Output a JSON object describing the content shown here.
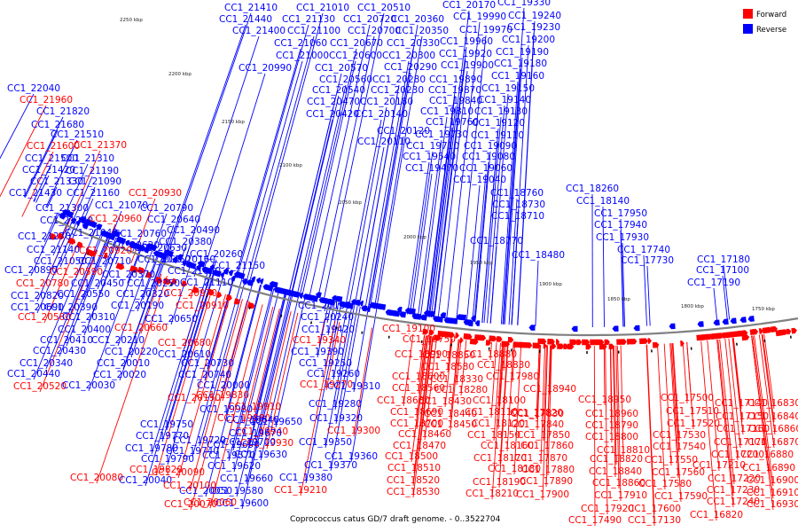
{
  "caption": "Coprococcus catus GD/7 draft genome. - 0..3522704",
  "legend": [
    {
      "label": "Forward",
      "color": "#ff0000"
    },
    {
      "label": "Reverse",
      "color": "#0000ff"
    }
  ],
  "colors": {
    "forward": "#ff0000",
    "reverse": "#0000ff",
    "backbone": "#808080"
  },
  "ticks": [
    "2250 kbp",
    "2200 kbp",
    "2150 kbp",
    "2100 kbp",
    "2050 kbp",
    "2000 kbp",
    "1950 kbp",
    "1900 kbp",
    "1850 kbp",
    "1800 kbp",
    "1750 kbp"
  ],
  "genes": [
    {
      "id": "CC1_21410",
      "strand": "r"
    },
    {
      "id": "CC1_21010",
      "strand": "r"
    },
    {
      "id": "CC1_20510",
      "strand": "r"
    },
    {
      "id": "CC1_20170",
      "strand": "r"
    },
    {
      "id": "CC1_19330",
      "strand": "r"
    },
    {
      "id": "CC1_21440",
      "strand": "r"
    },
    {
      "id": "CC1_21130",
      "strand": "r"
    },
    {
      "id": "CC1_20720",
      "strand": "r"
    },
    {
      "id": "CC1_20360",
      "strand": "r"
    },
    {
      "id": "CC1_19990",
      "strand": "r"
    },
    {
      "id": "CC1_19240",
      "strand": "r"
    },
    {
      "id": "CC1_21400",
      "strand": "r"
    },
    {
      "id": "CC1_21100",
      "strand": "r"
    },
    {
      "id": "CC1_20700",
      "strand": "r"
    },
    {
      "id": "CC1_20350",
      "strand": "r"
    },
    {
      "id": "CC1_19970",
      "strand": "r"
    },
    {
      "id": "CC1_19230",
      "strand": "r"
    },
    {
      "id": "CC1_21060",
      "strand": "r"
    },
    {
      "id": "CC1_20670",
      "strand": "r"
    },
    {
      "id": "CC1_20330",
      "strand": "r"
    },
    {
      "id": "CC1_19960",
      "strand": "r"
    },
    {
      "id": "CC1_19200",
      "strand": "r"
    },
    {
      "id": "CC1_21000",
      "strand": "r"
    },
    {
      "id": "CC1_20600",
      "strand": "r"
    },
    {
      "id": "CC1_20300",
      "strand": "r"
    },
    {
      "id": "CC1_19920",
      "strand": "r"
    },
    {
      "id": "CC1_19190",
      "strand": "r"
    },
    {
      "id": "CC1_20990",
      "strand": "r"
    },
    {
      "id": "CC1_20570",
      "strand": "r"
    },
    {
      "id": "CC1_20290",
      "strand": "r"
    },
    {
      "id": "CC1_19900",
      "strand": "r"
    },
    {
      "id": "CC1_19180",
      "strand": "r"
    },
    {
      "id": "CC1_20560",
      "strand": "r"
    },
    {
      "id": "CC1_20280",
      "strand": "r"
    },
    {
      "id": "CC1_19890",
      "strand": "r"
    },
    {
      "id": "CC1_19160",
      "strand": "r"
    },
    {
      "id": "CC1_20540",
      "strand": "r"
    },
    {
      "id": "CC1_20230",
      "strand": "r"
    },
    {
      "id": "CC1_19870",
      "strand": "r"
    },
    {
      "id": "CC1_19150",
      "strand": "r"
    },
    {
      "id": "CC1_20470",
      "strand": "r"
    },
    {
      "id": "CC1_20180",
      "strand": "r"
    },
    {
      "id": "CC1_19840",
      "strand": "r"
    },
    {
      "id": "CC1_19140",
      "strand": "r"
    },
    {
      "id": "CC1_20420",
      "strand": "r"
    },
    {
      "id": "CC1_20140",
      "strand": "r"
    },
    {
      "id": "CC1_19810",
      "strand": "r"
    },
    {
      "id": "CC1_19130",
      "strand": "r"
    },
    {
      "id": "CC1_19760",
      "strand": "r"
    },
    {
      "id": "CC1_19120",
      "strand": "r"
    },
    {
      "id": "CC1_20120",
      "strand": "r"
    },
    {
      "id": "CC1_19730",
      "strand": "r"
    },
    {
      "id": "CC1_19110",
      "strand": "r"
    },
    {
      "id": "CC1_20110",
      "strand": "r"
    },
    {
      "id": "CC1_19710",
      "strand": "r"
    },
    {
      "id": "CC1_19090",
      "strand": "r"
    },
    {
      "id": "CC1_19540",
      "strand": "r"
    },
    {
      "id": "CC1_19080",
      "strand": "r"
    },
    {
      "id": "CC1_19470",
      "strand": "r"
    },
    {
      "id": "CC1_19060",
      "strand": "r"
    },
    {
      "id": "CC1_19040",
      "strand": "r"
    },
    {
      "id": "CC1_18760",
      "strand": "r"
    },
    {
      "id": "CC1_18730",
      "strand": "r"
    },
    {
      "id": "CC1_18710",
      "strand": "r"
    },
    {
      "id": "CC1_18260",
      "strand": "r"
    },
    {
      "id": "CC1_18140",
      "strand": "r"
    },
    {
      "id": "CC1_17950",
      "strand": "r"
    },
    {
      "id": "CC1_17940",
      "strand": "r"
    },
    {
      "id": "CC1_17930",
      "strand": "r"
    },
    {
      "id": "CC1_17740",
      "strand": "r"
    },
    {
      "id": "CC1_17730",
      "strand": "r"
    },
    {
      "id": "CC1_18770",
      "strand": "r"
    },
    {
      "id": "CC1_18480",
      "strand": "r"
    },
    {
      "id": "CC1_17180",
      "strand": "r"
    },
    {
      "id": "CC1_17100",
      "strand": "r"
    },
    {
      "id": "CC1_17190",
      "strand": "r"
    },
    {
      "id": "CC1_22040",
      "strand": "r"
    },
    {
      "id": "CC1_21960",
      "strand": "f"
    },
    {
      "id": "CC1_21820",
      "strand": "r"
    },
    {
      "id": "CC1_21680",
      "strand": "r"
    },
    {
      "id": "CC1_21510",
      "strand": "r"
    },
    {
      "id": "CC1_21600",
      "strand": "f"
    },
    {
      "id": "CC1_21370",
      "strand": "f"
    },
    {
      "id": "CC1_21500",
      "strand": "r"
    },
    {
      "id": "CC1_21310",
      "strand": "r"
    },
    {
      "id": "CC1_21420",
      "strand": "r"
    },
    {
      "id": "CC1_21190",
      "strand": "r"
    },
    {
      "id": "CC1_21330",
      "strand": "r"
    },
    {
      "id": "CC1_21090",
      "strand": "r"
    },
    {
      "id": "CC1_21430",
      "strand": "r"
    },
    {
      "id": "CC1_21160",
      "strand": "r"
    },
    {
      "id": "CC1_20930",
      "strand": "f"
    },
    {
      "id": "CC1_21300",
      "strand": "r"
    },
    {
      "id": "CC1_21070",
      "strand": "r"
    },
    {
      "id": "CC1_20790",
      "strand": "r"
    },
    {
      "id": "CC1_21230",
      "strand": "r"
    },
    {
      "id": "CC1_20960",
      "strand": "f"
    },
    {
      "id": "CC1_20640",
      "strand": "r"
    },
    {
      "id": "CC1_21040",
      "strand": "r"
    },
    {
      "id": "CC1_20760",
      "strand": "r"
    },
    {
      "id": "CC1_20490",
      "strand": "r"
    },
    {
      "id": "CC1_21270",
      "strand": "r"
    },
    {
      "id": "CC1_20620",
      "strand": "r"
    },
    {
      "id": "CC1_20380",
      "strand": "r"
    },
    {
      "id": "CC1_21140",
      "strand": "r"
    },
    {
      "id": "CC1_20920",
      "strand": "f"
    },
    {
      "id": "CC1_20630",
      "strand": "r"
    },
    {
      "id": "CC1_20260",
      "strand": "r"
    },
    {
      "id": "CC1_21050",
      "strand": "r"
    },
    {
      "id": "CC1_20710",
      "strand": "r"
    },
    {
      "id": "CC1_20460",
      "strand": "r"
    },
    {
      "id": "CC1_20160",
      "strand": "r"
    },
    {
      "id": "CC1_21150",
      "strand": "r"
    },
    {
      "id": "CC1_20890",
      "strand": "r"
    },
    {
      "id": "CC1_20590",
      "strand": "f"
    },
    {
      "id": "CC1_20370",
      "strand": "r"
    },
    {
      "id": "CC1_21080",
      "strand": "r"
    },
    {
      "id": "CC1_20780",
      "strand": "f"
    },
    {
      "id": "CC1_20450",
      "strand": "r"
    },
    {
      "id": "CC1_20250",
      "strand": "r"
    },
    {
      "id": "CC1_21110",
      "strand": "r"
    },
    {
      "id": "CC1_20820",
      "strand": "r"
    },
    {
      "id": "CC1_20550",
      "strand": "r"
    },
    {
      "id": "CC1_20320",
      "strand": "r"
    },
    {
      "id": "CC1_20970",
      "strand": "f"
    },
    {
      "id": "CC1_20690",
      "strand": "r"
    },
    {
      "id": "CC1_20390",
      "strand": "r"
    },
    {
      "id": "CC1_20190",
      "strand": "r"
    },
    {
      "id": "CC1_20910",
      "strand": "f"
    },
    {
      "id": "CC1_20580",
      "strand": "f"
    },
    {
      "id": "CC1_20310",
      "strand": "r"
    },
    {
      "id": "CC1_20650",
      "strand": "r"
    },
    {
      "id": "CC1_20400",
      "strand": "r"
    },
    {
      "id": "CC1_20660",
      "strand": "f"
    },
    {
      "id": "CC1_20410",
      "strand": "r"
    },
    {
      "id": "CC1_20210",
      "strand": "r"
    },
    {
      "id": "CC1_20680",
      "strand": "f"
    },
    {
      "id": "CC1_20430",
      "strand": "r"
    },
    {
      "id": "CC1_20220",
      "strand": "r"
    },
    {
      "id": "CC1_20610",
      "strand": "r"
    },
    {
      "id": "CC1_20340",
      "strand": "r"
    },
    {
      "id": "CC1_20010",
      "strand": "r"
    },
    {
      "id": "CC1_20730",
      "strand": "r"
    },
    {
      "id": "CC1_20440",
      "strand": "r"
    },
    {
      "id": "CC1_20020",
      "strand": "r"
    },
    {
      "id": "CC1_20740",
      "strand": "r"
    },
    {
      "id": "CC1_20520",
      "strand": "f"
    },
    {
      "id": "CC1_20030",
      "strand": "r"
    },
    {
      "id": "CC1_20000",
      "strand": "r"
    },
    {
      "id": "CC1_20150",
      "strand": "f"
    },
    {
      "id": "CC1_19980",
      "strand": "r"
    },
    {
      "id": "CC1_19830",
      "strand": "f"
    },
    {
      "id": "CC1_19910",
      "strand": "f"
    },
    {
      "id": "CC1_19880",
      "strand": "f"
    },
    {
      "id": "CC1_19940",
      "strand": "f"
    },
    {
      "id": "CC1_19930",
      "strand": "f"
    },
    {
      "id": "CC1_19630",
      "strand": "r"
    },
    {
      "id": "CC1_19690",
      "strand": "r"
    },
    {
      "id": "CC1_19570",
      "strand": "r"
    },
    {
      "id": "CC1_19620",
      "strand": "r"
    },
    {
      "id": "CC1_19660",
      "strand": "r"
    },
    {
      "id": "CC1_19580",
      "strand": "r"
    },
    {
      "id": "CC1_19600",
      "strand": "r"
    },
    {
      "id": "CC1_19640",
      "strand": "r"
    },
    {
      "id": "CC1_19650",
      "strand": "r"
    },
    {
      "id": "CC1_19670",
      "strand": "r"
    },
    {
      "id": "CC1_19700",
      "strand": "r"
    },
    {
      "id": "CC1_19720",
      "strand": "r"
    },
    {
      "id": "CC1_19740",
      "strand": "r"
    },
    {
      "id": "CC1_19750",
      "strand": "r"
    },
    {
      "id": "CC1_19770",
      "strand": "r"
    },
    {
      "id": "CC1_19780",
      "strand": "r"
    },
    {
      "id": "CC1_19790",
      "strand": "r"
    },
    {
      "id": "CC1_19820",
      "strand": "f"
    },
    {
      "id": "CC1_20040",
      "strand": "r"
    },
    {
      "id": "CC1_20050",
      "strand": "r"
    },
    {
      "id": "CC1_20060",
      "strand": "f"
    },
    {
      "id": "CC1_20070",
      "strand": "f"
    },
    {
      "id": "CC1_20080",
      "strand": "f"
    },
    {
      "id": "CC1_20090",
      "strand": "f"
    },
    {
      "id": "CC1_20100",
      "strand": "f"
    },
    {
      "id": "CC1_20130",
      "strand": "r"
    },
    {
      "id": "CC1_20240",
      "strand": "r"
    },
    {
      "id": "CC1_19420",
      "strand": "r"
    },
    {
      "id": "CC1_19340",
      "strand": "f"
    },
    {
      "id": "CC1_19390",
      "strand": "r"
    },
    {
      "id": "CC1_19250",
      "strand": "r"
    },
    {
      "id": "CC1_19260",
      "strand": "r"
    },
    {
      "id": "CC1_19270",
      "strand": "f"
    },
    {
      "id": "CC1_19310",
      "strand": "r"
    },
    {
      "id": "CC1_19320",
      "strand": "r"
    },
    {
      "id": "CC1_19280",
      "strand": "r"
    },
    {
      "id": "CC1_19300",
      "strand": "f"
    },
    {
      "id": "CC1_19350",
      "strand": "r"
    },
    {
      "id": "CC1_19360",
      "strand": "r"
    },
    {
      "id": "CC1_19370",
      "strand": "r"
    },
    {
      "id": "CC1_19380",
      "strand": "r"
    },
    {
      "id": "CC1_19210",
      "strand": "f"
    },
    {
      "id": "CC1_19100",
      "strand": "f"
    },
    {
      "id": "CC1_18990",
      "strand": "f"
    },
    {
      "id": "CC1_18750",
      "strand": "f"
    },
    {
      "id": "CC1_18850",
      "strand": "f"
    },
    {
      "id": "CC1_18580",
      "strand": "f"
    },
    {
      "id": "CC1_18880",
      "strand": "f"
    },
    {
      "id": "CC1_18600",
      "strand": "f"
    },
    {
      "id": "CC1_18330",
      "strand": "f"
    },
    {
      "id": "CC1_18830",
      "strand": "f"
    },
    {
      "id": "CC1_18560",
      "strand": "f"
    },
    {
      "id": "CC1_18280",
      "strand": "f"
    },
    {
      "id": "CC1_17980",
      "strand": "f"
    },
    {
      "id": "CC1_18940",
      "strand": "f"
    },
    {
      "id": "CC1_18680",
      "strand": "f"
    },
    {
      "id": "CC1_18430",
      "strand": "f"
    },
    {
      "id": "CC1_18100",
      "strand": "f"
    },
    {
      "id": "CC1_17820",
      "strand": "f"
    },
    {
      "id": "CC1_18950",
      "strand": "f"
    },
    {
      "id": "CC1_18690",
      "strand": "f"
    },
    {
      "id": "CC1_18440",
      "strand": "f"
    },
    {
      "id": "CC1_18110",
      "strand": "f"
    },
    {
      "id": "CC1_17830",
      "strand": "f"
    },
    {
      "id": "CC1_18960",
      "strand": "f"
    },
    {
      "id": "CC1_18700",
      "strand": "f"
    },
    {
      "id": "CC1_18450",
      "strand": "f"
    },
    {
      "id": "CC1_18120",
      "strand": "f"
    },
    {
      "id": "CC1_17840",
      "strand": "f"
    },
    {
      "id": "CC1_18790",
      "strand": "f"
    },
    {
      "id": "CC1_18460",
      "strand": "f"
    },
    {
      "id": "CC1_18150",
      "strand": "f"
    },
    {
      "id": "CC1_17850",
      "strand": "f"
    },
    {
      "id": "CC1_18800",
      "strand": "f"
    },
    {
      "id": "CC1_18470",
      "strand": "f"
    },
    {
      "id": "CC1_18160",
      "strand": "f"
    },
    {
      "id": "CC1_17860",
      "strand": "f"
    },
    {
      "id": "CC1_18810",
      "strand": "f"
    },
    {
      "id": "CC1_18500",
      "strand": "f"
    },
    {
      "id": "CC1_18170",
      "strand": "f"
    },
    {
      "id": "CC1_17870",
      "strand": "f"
    },
    {
      "id": "CC1_18820",
      "strand": "f"
    },
    {
      "id": "CC1_18510",
      "strand": "f"
    },
    {
      "id": "CC1_18180",
      "strand": "f"
    },
    {
      "id": "CC1_17880",
      "strand": "f"
    },
    {
      "id": "CC1_18840",
      "strand": "f"
    },
    {
      "id": "CC1_18520",
      "strand": "f"
    },
    {
      "id": "CC1_18190",
      "strand": "f"
    },
    {
      "id": "CC1_17890",
      "strand": "f"
    },
    {
      "id": "CC1_18860",
      "strand": "f"
    },
    {
      "id": "CC1_18530",
      "strand": "f"
    },
    {
      "id": "CC1_18210",
      "strand": "f"
    },
    {
      "id": "CC1_17900",
      "strand": "f"
    },
    {
      "id": "CC1_17910",
      "strand": "f"
    },
    {
      "id": "CC1_17920",
      "strand": "f"
    },
    {
      "id": "CC1_17490",
      "strand": "f"
    },
    {
      "id": "CC1_17500",
      "strand": "f"
    },
    {
      "id": "CC1_17510",
      "strand": "f"
    },
    {
      "id": "CC1_17520",
      "strand": "f"
    },
    {
      "id": "CC1_17530",
      "strand": "f"
    },
    {
      "id": "CC1_17540",
      "strand": "f"
    },
    {
      "id": "CC1_17550",
      "strand": "f"
    },
    {
      "id": "CC1_17560",
      "strand": "f"
    },
    {
      "id": "CC1_17580",
      "strand": "f"
    },
    {
      "id": "CC1_17590",
      "strand": "f"
    },
    {
      "id": "CC1_17600",
      "strand": "f"
    },
    {
      "id": "CC1_17130",
      "strand": "f"
    },
    {
      "id": "CC1_17140",
      "strand": "f"
    },
    {
      "id": "CC1_17150",
      "strand": "f"
    },
    {
      "id": "CC1_17160",
      "strand": "f"
    },
    {
      "id": "CC1_17170",
      "strand": "f"
    },
    {
      "id": "CC1_17200",
      "strand": "f"
    },
    {
      "id": "CC1_17210",
      "strand": "f"
    },
    {
      "id": "CC1_17220",
      "strand": "f"
    },
    {
      "id": "CC1_17230",
      "strand": "f"
    },
    {
      "id": "CC1_17240",
      "strand": "f"
    },
    {
      "id": "CC1_16820",
      "strand": "f"
    },
    {
      "id": "CC1_16830",
      "strand": "f"
    },
    {
      "id": "CC1_16840",
      "strand": "f"
    },
    {
      "id": "CC1_16860",
      "strand": "f"
    },
    {
      "id": "CC1_16870",
      "strand": "f"
    },
    {
      "id": "CC1_16880",
      "strand": "f"
    },
    {
      "id": "CC1_16890",
      "strand": "f"
    },
    {
      "id": "CC1_16900",
      "strand": "f"
    },
    {
      "id": "CC1_16910",
      "strand": "f"
    },
    {
      "id": "CC1_16930",
      "strand": "f"
    }
  ]
}
